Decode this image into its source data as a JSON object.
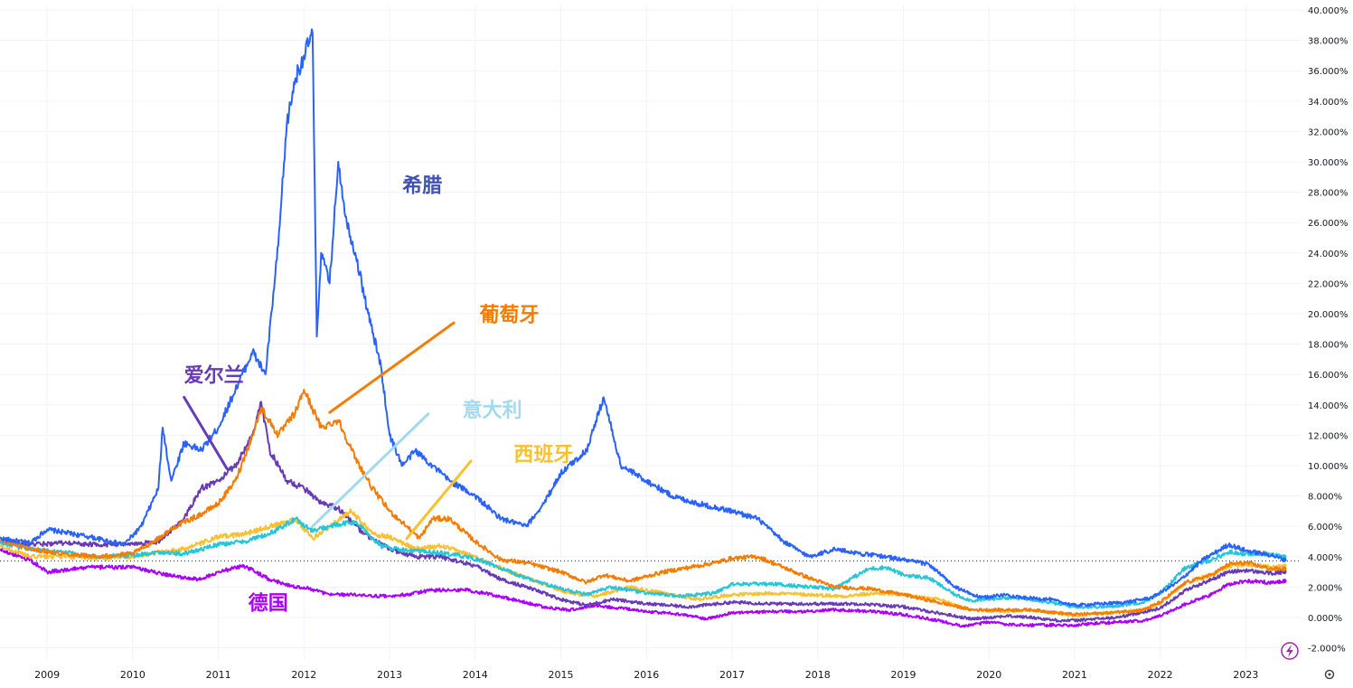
{
  "chart_data": {
    "type": "line",
    "xlim": [
      2008.45,
      2023.65
    ],
    "ylim": [
      -2.8,
      40.3
    ],
    "y_tick_values": [
      -2,
      0,
      2,
      4,
      6,
      8,
      10,
      12,
      14,
      16,
      18,
      20,
      22,
      24,
      26,
      28,
      30,
      32,
      34,
      36,
      38,
      40
    ],
    "y_tick_labels": [
      "-2.000%",
      "0.000%",
      "2.000%",
      "4.000%",
      "6.000%",
      "8.000%",
      "10.000%",
      "12.000%",
      "14.000%",
      "16.000%",
      "18.000%",
      "20.000%",
      "22.000%",
      "24.000%",
      "26.000%",
      "28.000%",
      "30.000%",
      "32.000%",
      "34.000%",
      "36.000%",
      "38.000%",
      "40.000%"
    ],
    "x_tick_values": [
      2009,
      2010,
      2011,
      2012,
      2013,
      2014,
      2015,
      2016,
      2017,
      2018,
      2019,
      2020,
      2021,
      2022,
      2023
    ],
    "x_tick_labels": [
      "2009",
      "2010",
      "2011",
      "2012",
      "2013",
      "2014",
      "2015",
      "2016",
      "2017",
      "2018",
      "2019",
      "2020",
      "2021",
      "2022",
      "2023"
    ],
    "grid": true,
    "reference_line": 3.72,
    "series": [
      {
        "name": "希腊",
        "color": "#2962ff",
        "x": [
          2008.45,
          2008.8,
          2009.0,
          2009.5,
          2009.9,
          2010.1,
          2010.3,
          2010.35,
          2010.45,
          2010.6,
          2010.8,
          2011.0,
          2011.2,
          2011.4,
          2011.55,
          2011.7,
          2011.8,
          2011.9,
          2012.0,
          2012.1,
          2012.15,
          2012.2,
          2012.3,
          2012.4,
          2012.5,
          2012.6,
          2012.75,
          2012.9,
          2013.0,
          2013.15,
          2013.3,
          2013.5,
          2013.7,
          2014.0,
          2014.3,
          2014.6,
          2014.8,
          2015.0,
          2015.3,
          2015.5,
          2015.7,
          2016.0,
          2016.3,
          2016.6,
          2017.0,
          2017.3,
          2017.6,
          2017.9,
          2018.2,
          2018.5,
          2018.8,
          2019.0,
          2019.3,
          2019.6,
          2019.9,
          2020.2,
          2020.4,
          2020.7,
          2021.0,
          2021.3,
          2021.6,
          2021.9,
          2022.2,
          2022.5,
          2022.8,
          2023.0,
          2023.3,
          2023.45
        ],
        "y": [
          5.2,
          4.9,
          5.8,
          5.3,
          4.8,
          6.0,
          8.5,
          12.5,
          9.0,
          11.5,
          11.0,
          12.5,
          15.0,
          17.5,
          16.0,
          24.5,
          32.5,
          35.5,
          37.0,
          38.5,
          18.5,
          24.0,
          22.0,
          30.0,
          26.0,
          24.0,
          20.0,
          16.5,
          12.0,
          10.0,
          11.0,
          10.0,
          9.0,
          8.0,
          6.5,
          6.0,
          7.5,
          9.5,
          11.0,
          14.5,
          10.0,
          9.0,
          8.0,
          7.5,
          7.0,
          6.5,
          5.0,
          4.0,
          4.5,
          4.2,
          4.0,
          3.8,
          3.5,
          2.0,
          1.3,
          1.5,
          1.3,
          1.2,
          0.8,
          0.9,
          1.0,
          1.3,
          2.3,
          3.8,
          4.8,
          4.4,
          4.1,
          3.8
        ]
      },
      {
        "name": "葡萄牙",
        "color": "#f57c00",
        "x": [
          2008.45,
          2008.8,
          2009.2,
          2009.6,
          2010.0,
          2010.3,
          2010.5,
          2010.8,
          2011.0,
          2011.2,
          2011.4,
          2011.5,
          2011.7,
          2011.9,
          2012.0,
          2012.2,
          2012.4,
          2012.6,
          2012.8,
          2013.0,
          2013.2,
          2013.35,
          2013.5,
          2013.7,
          2014.0,
          2014.3,
          2014.6,
          2015.0,
          2015.3,
          2015.5,
          2015.8,
          2016.0,
          2016.2,
          2016.5,
          2016.8,
          2017.0,
          2017.3,
          2017.6,
          2017.9,
          2018.2,
          2018.6,
          2019.0,
          2019.4,
          2019.8,
          2020.2,
          2020.5,
          2020.8,
          2021.0,
          2021.4,
          2021.8,
          2022.0,
          2022.3,
          2022.6,
          2022.8,
          2023.0,
          2023.3,
          2023.45
        ],
        "y": [
          5.1,
          4.5,
          4.2,
          4.0,
          4.2,
          5.2,
          6.0,
          6.8,
          7.5,
          9.0,
          12.0,
          13.8,
          12.0,
          13.5,
          15.0,
          12.5,
          13.0,
          10.5,
          8.5,
          7.0,
          6.0,
          5.2,
          6.5,
          6.5,
          5.0,
          3.8,
          3.6,
          3.0,
          2.3,
          2.8,
          2.4,
          2.7,
          3.0,
          3.3,
          3.6,
          3.9,
          4.0,
          3.3,
          2.6,
          2.0,
          1.9,
          1.5,
          1.0,
          0.5,
          0.5,
          0.5,
          0.3,
          0.2,
          0.3,
          0.5,
          1.0,
          2.3,
          2.8,
          3.5,
          3.6,
          3.2,
          3.2
        ]
      },
      {
        "name": "意大利",
        "color": "#26c6da",
        "x": [
          2008.45,
          2008.8,
          2009.2,
          2009.6,
          2010.0,
          2010.3,
          2010.6,
          2011.0,
          2011.3,
          2011.6,
          2011.9,
          2012.1,
          2012.3,
          2012.6,
          2012.9,
          2013.2,
          2013.5,
          2013.8,
          2014.1,
          2014.4,
          2014.7,
          2015.0,
          2015.3,
          2015.6,
          2016.0,
          2016.4,
          2016.8,
          2017.0,
          2017.5,
          2017.9,
          2018.2,
          2018.4,
          2018.6,
          2018.8,
          2019.0,
          2019.3,
          2019.6,
          2019.8,
          2020.2,
          2020.5,
          2020.8,
          2021.0,
          2021.4,
          2021.8,
          2022.0,
          2022.3,
          2022.6,
          2022.8,
          2023.0,
          2023.3,
          2023.45
        ],
        "y": [
          4.9,
          4.5,
          4.3,
          4.0,
          4.1,
          4.3,
          4.2,
          4.8,
          5.0,
          5.5,
          6.5,
          5.7,
          6.0,
          6.3,
          4.7,
          4.4,
          4.3,
          4.1,
          3.7,
          3.0,
          2.4,
          1.9,
          1.5,
          2.0,
          1.6,
          1.4,
          1.6,
          2.2,
          2.2,
          2.0,
          1.9,
          2.6,
          3.2,
          3.3,
          2.8,
          2.6,
          1.5,
          1.1,
          1.3,
          1.2,
          0.9,
          0.7,
          0.7,
          1.0,
          1.6,
          3.3,
          3.8,
          4.3,
          4.2,
          4.2,
          4.0
        ]
      },
      {
        "name": "西班牙",
        "color": "#fbc02d",
        "x": [
          2008.45,
          2008.8,
          2009.2,
          2009.6,
          2010.0,
          2010.3,
          2010.6,
          2011.0,
          2011.3,
          2011.6,
          2011.9,
          2012.1,
          2012.3,
          2012.55,
          2012.8,
          2013.0,
          2013.3,
          2013.6,
          2013.9,
          2014.2,
          2014.5,
          2014.8,
          2015.1,
          2015.4,
          2015.8,
          2016.2,
          2016.6,
          2017.0,
          2017.5,
          2017.9,
          2018.3,
          2018.7,
          2019.0,
          2019.4,
          2019.8,
          2020.2,
          2020.5,
          2020.8,
          2021.0,
          2021.4,
          2021.8,
          2022.0,
          2022.3,
          2022.6,
          2022.8,
          2023.0,
          2023.3,
          2023.45
        ],
        "y": [
          4.7,
          4.0,
          4.0,
          3.9,
          4.0,
          4.3,
          4.5,
          5.3,
          5.5,
          6.0,
          6.5,
          5.2,
          6.0,
          7.0,
          5.5,
          5.3,
          4.5,
          4.7,
          4.2,
          3.5,
          2.8,
          2.2,
          1.6,
          1.4,
          2.0,
          1.6,
          1.2,
          1.5,
          1.6,
          1.5,
          1.4,
          1.6,
          1.5,
          1.2,
          0.5,
          0.4,
          0.5,
          0.3,
          0.1,
          0.3,
          0.5,
          0.9,
          2.3,
          2.8,
          3.4,
          3.5,
          3.3,
          3.4
        ]
      },
      {
        "name": "爱尔兰",
        "color": "#673ab7",
        "x": [
          2008.45,
          2008.8,
          2009.2,
          2009.6,
          2010.0,
          2010.3,
          2010.6,
          2010.8,
          2011.0,
          2011.2,
          2011.4,
          2011.5,
          2011.6,
          2011.8,
          2012.0,
          2012.2,
          2012.4,
          2012.7,
          2013.0,
          2013.3,
          2013.6,
          2014.0,
          2014.3,
          2014.6,
          2015.0,
          2015.3,
          2015.6,
          2016.0,
          2016.5,
          2017.0,
          2017.5,
          2018.0,
          2018.5,
          2019.0,
          2019.5,
          2019.8,
          2020.2,
          2020.5,
          2020.8,
          2021.0,
          2021.5,
          2022.0,
          2022.3,
          2022.6,
          2022.8,
          2023.0,
          2023.3,
          2023.45
        ],
        "y": [
          5.0,
          4.8,
          4.9,
          4.8,
          4.8,
          5.0,
          6.5,
          8.5,
          9.0,
          10.0,
          12.0,
          14.2,
          11.0,
          9.0,
          8.5,
          7.5,
          7.2,
          5.5,
          4.5,
          4.0,
          4.0,
          3.4,
          2.5,
          2.0,
          1.2,
          0.8,
          1.2,
          0.9,
          0.7,
          1.0,
          0.9,
          0.9,
          0.9,
          0.7,
          0.2,
          -0.1,
          0.1,
          0.0,
          -0.2,
          -0.2,
          0.0,
          0.6,
          1.8,
          2.5,
          3.0,
          3.1,
          2.9,
          3.0
        ]
      },
      {
        "name": "德国",
        "color": "#aa00ff",
        "x": [
          2008.45,
          2008.8,
          2009.0,
          2009.5,
          2010.0,
          2010.5,
          2010.8,
          2011.0,
          2011.3,
          2011.6,
          2011.9,
          2012.0,
          2012.3,
          2012.6,
          2012.9,
          2013.2,
          2013.5,
          2013.9,
          2014.2,
          2014.5,
          2014.8,
          2015.1,
          2015.4,
          2015.7,
          2016.0,
          2016.4,
          2016.7,
          2017.0,
          2017.5,
          2017.9,
          2018.2,
          2018.6,
          2019.0,
          2019.4,
          2019.7,
          2020.0,
          2020.3,
          2020.6,
          2021.0,
          2021.5,
          2021.8,
          2022.0,
          2022.3,
          2022.6,
          2022.8,
          2023.0,
          2023.3,
          2023.45
        ],
        "y": [
          4.5,
          3.8,
          3.0,
          3.3,
          3.3,
          2.7,
          2.5,
          3.0,
          3.4,
          2.5,
          2.0,
          2.0,
          1.5,
          1.5,
          1.4,
          1.5,
          1.8,
          1.8,
          1.5,
          1.1,
          0.7,
          0.5,
          0.8,
          0.6,
          0.4,
          0.2,
          -0.1,
          0.3,
          0.4,
          0.4,
          0.5,
          0.4,
          0.2,
          -0.2,
          -0.6,
          -0.3,
          -0.5,
          -0.5,
          -0.5,
          -0.3,
          -0.2,
          0.1,
          0.9,
          1.5,
          2.2,
          2.4,
          2.3,
          2.4
        ]
      }
    ],
    "annotations": [
      {
        "text": "希腊",
        "color": "#3f51b5",
        "x": 2013.15,
        "y": 28.0
      },
      {
        "text": "葡萄牙",
        "color": "#f57c00",
        "x": 2014.05,
        "y": 19.5,
        "arrow_from": [
          2013.75,
          19.4
        ],
        "arrow_to": [
          2012.3,
          13.5
        ]
      },
      {
        "text": "意大利",
        "color": "#a3d9f0",
        "x": 2013.85,
        "y": 13.2,
        "arrow_from": [
          2013.45,
          13.4
        ],
        "arrow_to": [
          2012.1,
          6.0
        ]
      },
      {
        "text": "西班牙",
        "color": "#fbc02d",
        "x": 2014.45,
        "y": 10.3,
        "arrow_from": [
          2013.95,
          10.3
        ],
        "arrow_to": [
          2013.2,
          5.2
        ]
      },
      {
        "text": "爱尔兰",
        "color": "#673ab7",
        "x": 2010.6,
        "y": 15.5,
        "arrow_from": [
          2010.6,
          14.5
        ],
        "arrow_to": [
          2011.1,
          9.8
        ]
      },
      {
        "text": "德国",
        "color": "#aa00ff",
        "x": 2011.35,
        "y": 0.5
      }
    ]
  }
}
